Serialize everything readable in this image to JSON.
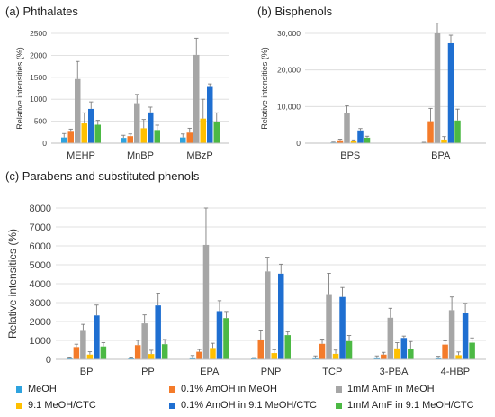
{
  "panels": {
    "a_title": "(a) Phthalates",
    "b_title": "(b) Bisphenols",
    "c_title": "(c) Parabens and substituted phenols"
  },
  "legend": [
    {
      "label": "MeOH",
      "color": "#2EA3DF"
    },
    {
      "label": "0.1% AmOH in MeOH",
      "color": "#F47B2A"
    },
    {
      "label": "1mM AmF in MeOH",
      "color": "#A6A6A6"
    },
    {
      "label": "9:1 MeOH/CTC",
      "color": "#FFC000"
    },
    {
      "label": "0.1% AmOH in 9:1 MeOH/CTC",
      "color": "#1F6FD1"
    },
    {
      "label": "1mM AmF in 9:1 MeOH/CTC",
      "color": "#4CB944"
    }
  ],
  "chart_data": [
    {
      "type": "bar",
      "title": "(a) Phthalates",
      "ylabel": "Relative intensities (%)",
      "xlabel": "",
      "ylim": [
        0,
        2500
      ],
      "yticks": [
        0,
        500,
        1000,
        1500,
        2000,
        2500
      ],
      "ytick_labels": [
        "0",
        "500",
        "1000",
        "1500",
        "2000",
        "2500"
      ],
      "grid": true,
      "categories": [
        "MEHP",
        "MnBP",
        "MBzP"
      ],
      "series": [
        {
          "name": "MeOH",
          "values": [
            130,
            120,
            130
          ],
          "errors": [
            90,
            60,
            80
          ]
        },
        {
          "name": "0.1% AmOH in MeOH",
          "values": [
            260,
            160,
            240
          ],
          "errors": [
            60,
            50,
            100
          ]
        },
        {
          "name": "1mM AmF in MeOH",
          "values": [
            1460,
            910,
            2010
          ],
          "errors": [
            400,
            200,
            380
          ]
        },
        {
          "name": "9:1 MeOH/CTC",
          "values": [
            450,
            340,
            560
          ],
          "errors": [
            240,
            200,
            440
          ]
        },
        {
          "name": "0.1% AmOH in 9:1 MeOH/CTC",
          "values": [
            780,
            700,
            1280
          ],
          "errors": [
            160,
            120,
            70
          ]
        },
        {
          "name": "1mM AmF in 9:1 MeOH/CTC",
          "values": [
            420,
            300,
            490
          ],
          "errors": [
            100,
            110,
            200
          ]
        }
      ]
    },
    {
      "type": "bar",
      "title": "(b) Bisphenols",
      "ylabel": "Relative intensities (%)",
      "xlabel": "",
      "ylim": [
        0,
        30000
      ],
      "yticks": [
        0,
        10000,
        20000,
        30000
      ],
      "ytick_labels": [
        "0",
        "10,000",
        "20,000",
        "30,000"
      ],
      "grid": true,
      "categories": [
        "BPS",
        "BPA"
      ],
      "series": [
        {
          "name": "MeOH",
          "values": [
            200,
            150
          ],
          "errors": [
            100,
            100
          ]
        },
        {
          "name": "0.1% AmOH in MeOH",
          "values": [
            800,
            6000
          ],
          "errors": [
            300,
            3500
          ]
        },
        {
          "name": "1mM AmF in MeOH",
          "values": [
            8200,
            30000
          ],
          "errors": [
            2000,
            2800
          ]
        },
        {
          "name": "9:1 MeOH/CTC",
          "values": [
            700,
            1000
          ],
          "errors": [
            200,
            800
          ]
        },
        {
          "name": "0.1% AmOH in 9:1 MeOH/CTC",
          "values": [
            3500,
            27300
          ],
          "errors": [
            500,
            2200
          ]
        },
        {
          "name": "1mM AmF in 9:1 MeOH/CTC",
          "values": [
            1500,
            6200
          ],
          "errors": [
            400,
            3100
          ]
        }
      ]
    },
    {
      "type": "bar",
      "title": "(c) Parabens and substituted phenols",
      "ylabel": "Relative intensities (%)",
      "xlabel": "",
      "ylim": [
        0,
        8000
      ],
      "yticks": [
        0,
        1000,
        2000,
        3000,
        4000,
        5000,
        6000,
        7000,
        8000
      ],
      "ytick_labels": [
        "0",
        "1000",
        "2000",
        "3000",
        "4000",
        "5000",
        "6000",
        "7000",
        "8000"
      ],
      "grid": true,
      "categories": [
        "BP",
        "PP",
        "EPA",
        "PNP",
        "TCP",
        "3-PBA",
        "4-HBP"
      ],
      "series": [
        {
          "name": "MeOH",
          "values": [
            80,
            80,
            100,
            50,
            100,
            100,
            100
          ],
          "errors": [
            40,
            40,
            100,
            40,
            80,
            80,
            60
          ]
        },
        {
          "name": "0.1% AmOH in MeOH",
          "values": [
            650,
            750,
            400,
            1050,
            820,
            250,
            780
          ],
          "errors": [
            150,
            250,
            120,
            500,
            250,
            120,
            200
          ]
        },
        {
          "name": "1mM AmF in MeOH",
          "values": [
            1550,
            1900,
            6050,
            4650,
            3450,
            2200,
            2600
          ],
          "errors": [
            300,
            450,
            1950,
            750,
            1100,
            500,
            700
          ]
        },
        {
          "name": "9:1 MeOH/CTC",
          "values": [
            250,
            280,
            600,
            330,
            290,
            580,
            220
          ],
          "errors": [
            150,
            200,
            250,
            180,
            200,
            300,
            170
          ]
        },
        {
          "name": "0.1% AmOH in 9:1 MeOH/CTC",
          "values": [
            2320,
            2850,
            2550,
            4530,
            3300,
            1130,
            2460
          ],
          "errors": [
            550,
            650,
            550,
            500,
            500,
            100,
            500
          ]
        },
        {
          "name": "1mM AmF in 9:1 MeOH/CTC",
          "values": [
            680,
            800,
            2180,
            1280,
            960,
            540,
            880
          ],
          "errors": [
            200,
            250,
            350,
            180,
            300,
            400,
            250
          ]
        }
      ]
    }
  ]
}
